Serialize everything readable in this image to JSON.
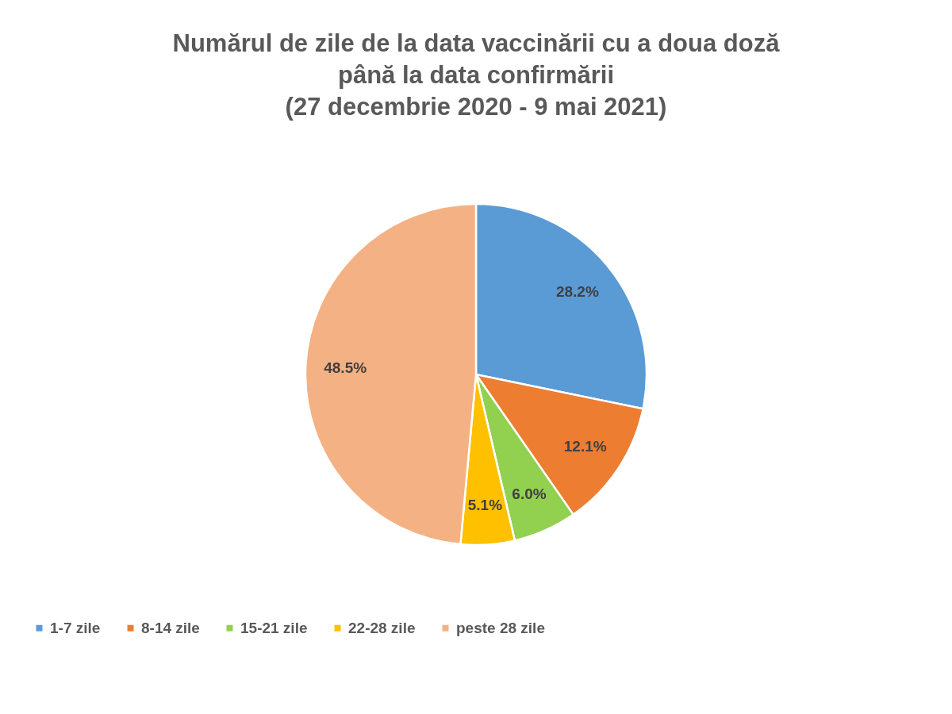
{
  "chart_data": {
    "type": "pie",
    "title": "Numărul de zile de la data vaccinării cu a doua doză\npână la data confirmării\n(27 decembrie 2020 - 9 mai 2021)",
    "categories": [
      "1-7 zile",
      "8-14 zile",
      "15-21 zile",
      "22-28 zile",
      "peste 28 zile"
    ],
    "values": [
      28.2,
      12.1,
      6.0,
      5.1,
      48.5
    ],
    "value_labels": [
      "28.2%",
      "12.1%",
      "6.0%",
      "5.1%",
      "48.5%"
    ],
    "colors": [
      "#5b9bd5",
      "#ed7d31",
      "#92d050",
      "#ffc000",
      "#f4b183"
    ],
    "legend": "bottom"
  }
}
